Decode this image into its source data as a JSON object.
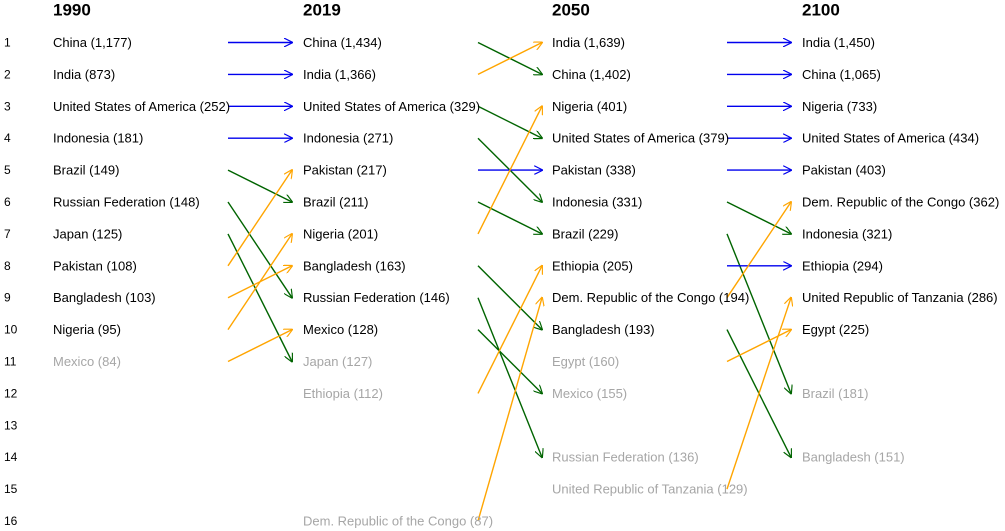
{
  "chart_data": {
    "type": "bump",
    "years": [
      "1990",
      "2019",
      "2050",
      "2100"
    ],
    "ranks": [
      "1",
      "2",
      "3",
      "4",
      "5",
      "6",
      "7",
      "8",
      "9",
      "10",
      "11",
      "12",
      "13",
      "14",
      "15",
      "16"
    ],
    "top_n_dark": 10,
    "colors": {
      "same_rank": "#0000ee",
      "rank_up": "#ffa500",
      "rank_down": "#006400",
      "in_top": "#000000",
      "out_of_top": "#a6a6a6",
      "rank_numbers": "#000000"
    },
    "columns": [
      {
        "year": "1990",
        "entries": [
          {
            "rank": 1,
            "label": "China (1,177)"
          },
          {
            "rank": 2,
            "label": "India (873)"
          },
          {
            "rank": 3,
            "label": "United States of America (252)"
          },
          {
            "rank": 4,
            "label": "Indonesia (181)"
          },
          {
            "rank": 5,
            "label": "Brazil (149)"
          },
          {
            "rank": 6,
            "label": "Russian Federation (148)"
          },
          {
            "rank": 7,
            "label": "Japan (125)"
          },
          {
            "rank": 8,
            "label": "Pakistan (108)"
          },
          {
            "rank": 9,
            "label": "Bangladesh (103)"
          },
          {
            "rank": 10,
            "label": "Nigeria (95)"
          },
          {
            "rank": 11,
            "label": "Mexico (84)"
          }
        ]
      },
      {
        "year": "2019",
        "entries": [
          {
            "rank": 1,
            "label": "China (1,434)"
          },
          {
            "rank": 2,
            "label": "India (1,366)"
          },
          {
            "rank": 3,
            "label": "United States of America (329)"
          },
          {
            "rank": 4,
            "label": "Indonesia (271)"
          },
          {
            "rank": 5,
            "label": "Pakistan (217)"
          },
          {
            "rank": 6,
            "label": "Brazil (211)"
          },
          {
            "rank": 7,
            "label": "Nigeria (201)"
          },
          {
            "rank": 8,
            "label": "Bangladesh (163)"
          },
          {
            "rank": 9,
            "label": "Russian Federation (146)"
          },
          {
            "rank": 10,
            "label": "Mexico (128)"
          },
          {
            "rank": 11,
            "label": "Japan (127)"
          },
          {
            "rank": 12,
            "label": "Ethiopia (112)"
          },
          {
            "rank": 16,
            "label": "Dem. Republic of the Congo (87)"
          }
        ]
      },
      {
        "year": "2050",
        "entries": [
          {
            "rank": 1,
            "label": "India (1,639)"
          },
          {
            "rank": 2,
            "label": "China (1,402)"
          },
          {
            "rank": 3,
            "label": "Nigeria (401)"
          },
          {
            "rank": 4,
            "label": "United States of America (379)"
          },
          {
            "rank": 5,
            "label": "Pakistan (338)"
          },
          {
            "rank": 6,
            "label": "Indonesia (331)"
          },
          {
            "rank": 7,
            "label": "Brazil (229)"
          },
          {
            "rank": 8,
            "label": "Ethiopia (205)"
          },
          {
            "rank": 9,
            "label": "Dem. Republic of the Congo (194)"
          },
          {
            "rank": 10,
            "label": "Bangladesh (193)"
          },
          {
            "rank": 11,
            "label": "Egypt (160)"
          },
          {
            "rank": 12,
            "label": "Mexico (155)"
          },
          {
            "rank": 14,
            "label": "Russian Federation (136)"
          },
          {
            "rank": 15,
            "label": "United Republic of Tanzania (129)"
          }
        ]
      },
      {
        "year": "2100",
        "entries": [
          {
            "rank": 1,
            "label": "India (1,450)"
          },
          {
            "rank": 2,
            "label": "China (1,065)"
          },
          {
            "rank": 3,
            "label": "Nigeria (733)"
          },
          {
            "rank": 4,
            "label": "United States of America (434)"
          },
          {
            "rank": 5,
            "label": "Pakistan (403)"
          },
          {
            "rank": 6,
            "label": "Dem. Republic of the Congo (362)"
          },
          {
            "rank": 7,
            "label": "Indonesia (321)"
          },
          {
            "rank": 8,
            "label": "Ethiopia (294)"
          },
          {
            "rank": 9,
            "label": "United Republic of Tanzania (286)"
          },
          {
            "rank": 10,
            "label": "Egypt (225)"
          },
          {
            "rank": 12,
            "label": "Brazil (181)"
          },
          {
            "rank": 14,
            "label": "Bangladesh (151)"
          }
        ]
      }
    ],
    "transitions": [
      [
        [
          1,
          1
        ],
        [
          2,
          2
        ],
        [
          3,
          3
        ],
        [
          4,
          4
        ],
        [
          5,
          6
        ],
        [
          6,
          9
        ],
        [
          7,
          11
        ],
        [
          8,
          5
        ],
        [
          9,
          8
        ],
        [
          10,
          7
        ],
        [
          11,
          10
        ]
      ],
      [
        [
          1,
          2
        ],
        [
          2,
          1
        ],
        [
          3,
          4
        ],
        [
          4,
          6
        ],
        [
          5,
          5
        ],
        [
          6,
          7
        ],
        [
          7,
          3
        ],
        [
          8,
          10
        ],
        [
          9,
          14
        ],
        [
          10,
          12
        ],
        [
          12,
          8
        ],
        [
          16,
          9
        ]
      ],
      [
        [
          1,
          1
        ],
        [
          2,
          2
        ],
        [
          3,
          3
        ],
        [
          4,
          4
        ],
        [
          5,
          5
        ],
        [
          6,
          7
        ],
        [
          7,
          12
        ],
        [
          8,
          8
        ],
        [
          9,
          6
        ],
        [
          10,
          14
        ],
        [
          11,
          10
        ],
        [
          15,
          9
        ]
      ]
    ]
  }
}
